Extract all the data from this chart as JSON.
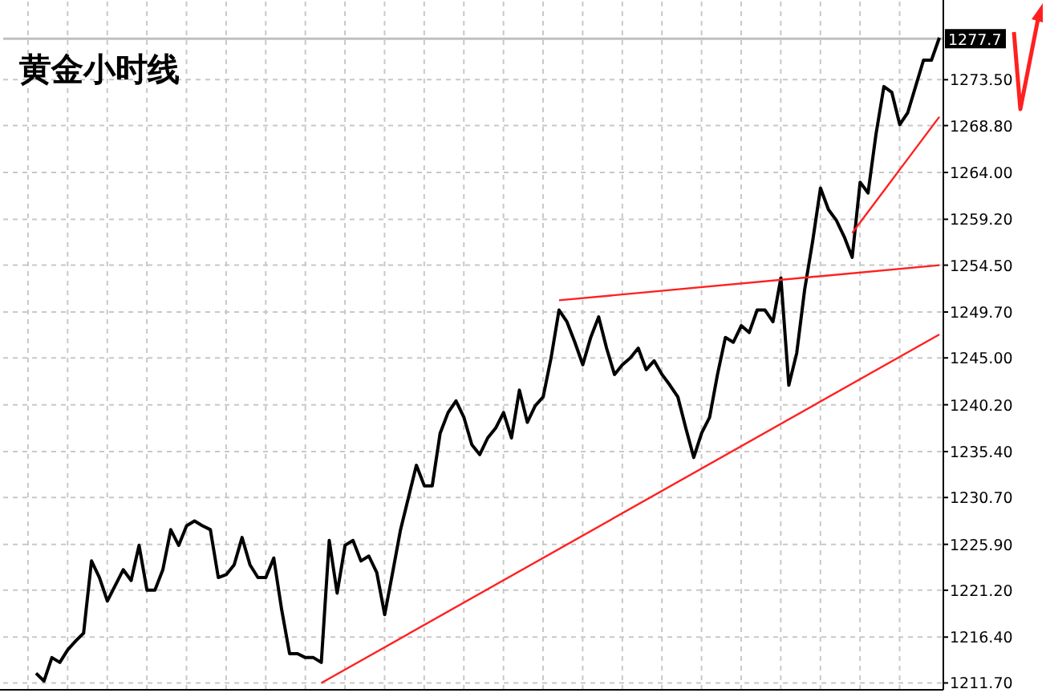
{
  "chart_data": {
    "type": "line",
    "title": "黄金小时线",
    "categories": [
      null,
      null,
      null,
      null,
      null,
      null,
      null,
      null,
      null,
      null,
      null,
      null,
      null,
      null,
      null,
      null,
      null,
      null,
      null,
      null,
      null,
      null,
      null,
      null,
      null,
      null,
      null,
      null,
      null,
      null,
      null,
      null,
      null,
      null,
      null,
      null,
      null,
      null,
      null,
      null,
      null,
      null,
      null,
      null,
      null,
      null,
      null,
      null,
      null,
      null,
      null,
      null,
      null,
      null,
      null,
      null,
      null,
      null,
      null,
      null,
      null,
      null,
      null,
      null,
      null,
      null,
      null,
      null,
      null,
      null,
      null,
      null,
      null,
      null,
      null,
      null,
      null,
      null,
      null,
      null,
      null,
      null,
      null,
      null,
      null,
      null,
      null,
      null,
      null,
      null,
      null,
      null,
      null,
      null,
      null,
      null,
      null,
      null,
      null,
      null,
      null,
      null,
      null,
      null,
      null,
      null,
      null,
      null,
      null,
      null,
      null,
      null,
      null,
      null,
      null
    ],
    "series": [
      {
        "color": "#000000",
        "values": [
          1212.7,
          1211.9,
          1214.3,
          1213.8,
          1215.1,
          1216.0,
          1216.8,
          1224.2,
          1222.5,
          1220.1,
          1221.7,
          1223.3,
          1222.2,
          1225.8,
          1221.2,
          1221.2,
          1223.3,
          1227.4,
          1225.8,
          1227.8,
          1228.3,
          1227.8,
          1227.4,
          1222.5,
          1222.8,
          1223.8,
          1226.6,
          1223.8,
          1222.5,
          1222.5,
          1224.5,
          1219.2,
          1214.7,
          1214.7,
          1214.3,
          1214.3,
          1213.8,
          1226.3,
          1220.9,
          1225.8,
          1226.3,
          1224.2,
          1224.7,
          1223.0,
          1218.7,
          1223.0,
          1227.4,
          1230.7,
          1234.0,
          1231.9,
          1231.9,
          1237.3,
          1239.4,
          1240.6,
          1238.9,
          1236.1,
          1235.1,
          1236.8,
          1237.8,
          1239.4,
          1236.8,
          1241.7,
          1238.4,
          1240.1,
          1241.0,
          1245.0,
          1249.9,
          1248.7,
          1246.6,
          1244.3,
          1247.1,
          1249.2,
          1246.0,
          1243.3,
          1244.3,
          1245.0,
          1246.0,
          1243.8,
          1244.7,
          1243.3,
          1242.2,
          1241.0,
          1237.8,
          1234.8,
          1237.3,
          1238.9,
          1243.3,
          1247.1,
          1246.6,
          1248.3,
          1247.6,
          1249.9,
          1249.9,
          1248.7,
          1253.2,
          1242.2,
          1245.5,
          1252.0,
          1256.9,
          1262.4,
          1260.2,
          1259.1,
          1257.4,
          1255.3,
          1263.0,
          1261.9,
          1267.9,
          1272.8,
          1272.2,
          1268.9,
          1270.1,
          1272.8,
          1275.5,
          1275.5,
          1277.8
        ]
      },
      {
        "type": "line",
        "color": "#ff2020",
        "values": [
          null,
          null,
          null,
          null,
          null,
          null,
          null,
          null,
          null,
          null,
          null,
          null,
          null,
          null,
          null,
          null,
          null,
          null,
          null,
          null,
          null,
          null,
          null,
          null,
          null,
          null,
          null,
          null,
          null,
          null,
          null,
          null,
          null,
          null,
          null,
          null,
          1211.7,
          null,
          null,
          null,
          null,
          null,
          null,
          null,
          null,
          null,
          null,
          null,
          null,
          null,
          null,
          null,
          null,
          null,
          null,
          null,
          null,
          null,
          null,
          null,
          null,
          null,
          null,
          null,
          null,
          null,
          null,
          null,
          null,
          null,
          null,
          null,
          null,
          null,
          null,
          null,
          null,
          null,
          null,
          null,
          null,
          null,
          null,
          null,
          null,
          null,
          null,
          null,
          null,
          null,
          null,
          null,
          null,
          null,
          null,
          null,
          null,
          null,
          null,
          null,
          null,
          null,
          null,
          null,
          null,
          null,
          null,
          null,
          null,
          null,
          null,
          null,
          null,
          null,
          1247.4
        ]
      },
      {
        "type": "line",
        "color": "#ff2020",
        "values": [
          null,
          null,
          null,
          null,
          null,
          null,
          null,
          null,
          null,
          null,
          null,
          null,
          null,
          null,
          null,
          null,
          null,
          null,
          null,
          null,
          null,
          null,
          null,
          null,
          null,
          null,
          null,
          null,
          null,
          null,
          null,
          null,
          null,
          null,
          null,
          null,
          null,
          null,
          null,
          null,
          null,
          null,
          null,
          null,
          null,
          null,
          null,
          null,
          null,
          null,
          null,
          null,
          null,
          null,
          null,
          null,
          null,
          null,
          null,
          null,
          null,
          null,
          null,
          null,
          null,
          null,
          1250.9,
          null,
          null,
          null,
          null,
          null,
          null,
          null,
          null,
          null,
          null,
          null,
          null,
          null,
          null,
          null,
          null,
          null,
          null,
          null,
          null,
          null,
          null,
          null,
          null,
          null,
          null,
          null,
          null,
          null,
          null,
          null,
          null,
          null,
          null,
          null,
          null,
          null,
          null,
          null,
          null,
          null,
          null,
          null,
          null,
          null,
          null,
          null,
          1254.5
        ]
      },
      {
        "type": "line",
        "color": "#ff2020",
        "values": [
          null,
          null,
          null,
          null,
          null,
          null,
          null,
          null,
          null,
          null,
          null,
          null,
          null,
          null,
          null,
          null,
          null,
          null,
          null,
          null,
          null,
          null,
          null,
          null,
          null,
          null,
          null,
          null,
          null,
          null,
          null,
          null,
          null,
          null,
          null,
          null,
          null,
          null,
          null,
          null,
          null,
          null,
          null,
          null,
          null,
          null,
          null,
          null,
          null,
          null,
          null,
          null,
          null,
          null,
          null,
          null,
          null,
          null,
          null,
          null,
          null,
          null,
          null,
          null,
          null,
          null,
          null,
          null,
          null,
          null,
          null,
          null,
          null,
          null,
          null,
          null,
          null,
          null,
          null,
          null,
          null,
          null,
          null,
          null,
          null,
          null,
          null,
          null,
          null,
          null,
          null,
          null,
          null,
          null,
          null,
          null,
          null,
          null,
          null,
          null,
          null,
          null,
          null,
          1257.8,
          null,
          null,
          null,
          null,
          null,
          null,
          null,
          null,
          null,
          null,
          1269.7
        ]
      }
    ],
    "ylim": [
      1211.0,
      1281.5
    ],
    "yticks": [
      {
        "value": 1211.7,
        "label": "1211.70"
      },
      {
        "value": 1216.4,
        "label": "1216.40"
      },
      {
        "value": 1221.2,
        "label": "1221.20"
      },
      {
        "value": 1225.9,
        "label": "1225.90"
      },
      {
        "value": 1230.7,
        "label": "1230.70"
      },
      {
        "value": 1235.4,
        "label": "1235.40"
      },
      {
        "value": 1240.2,
        "label": "1240.20"
      },
      {
        "value": 1245.0,
        "label": "1245.00"
      },
      {
        "value": 1249.7,
        "label": "1249.70"
      },
      {
        "value": 1254.5,
        "label": "1254.50"
      },
      {
        "value": 1259.2,
        "label": "1259.20"
      },
      {
        "value": 1264.0,
        "label": "1264.00"
      },
      {
        "value": 1268.8,
        "label": "1268.80"
      },
      {
        "value": 1273.5,
        "label": "1273.50"
      }
    ],
    "ref_lines": [
      {
        "axis": "y",
        "value": 1277.7,
        "label": "1277.7",
        "color": "#c0c0c0"
      }
    ],
    "grid": true,
    "tick_labels": "y"
  }
}
